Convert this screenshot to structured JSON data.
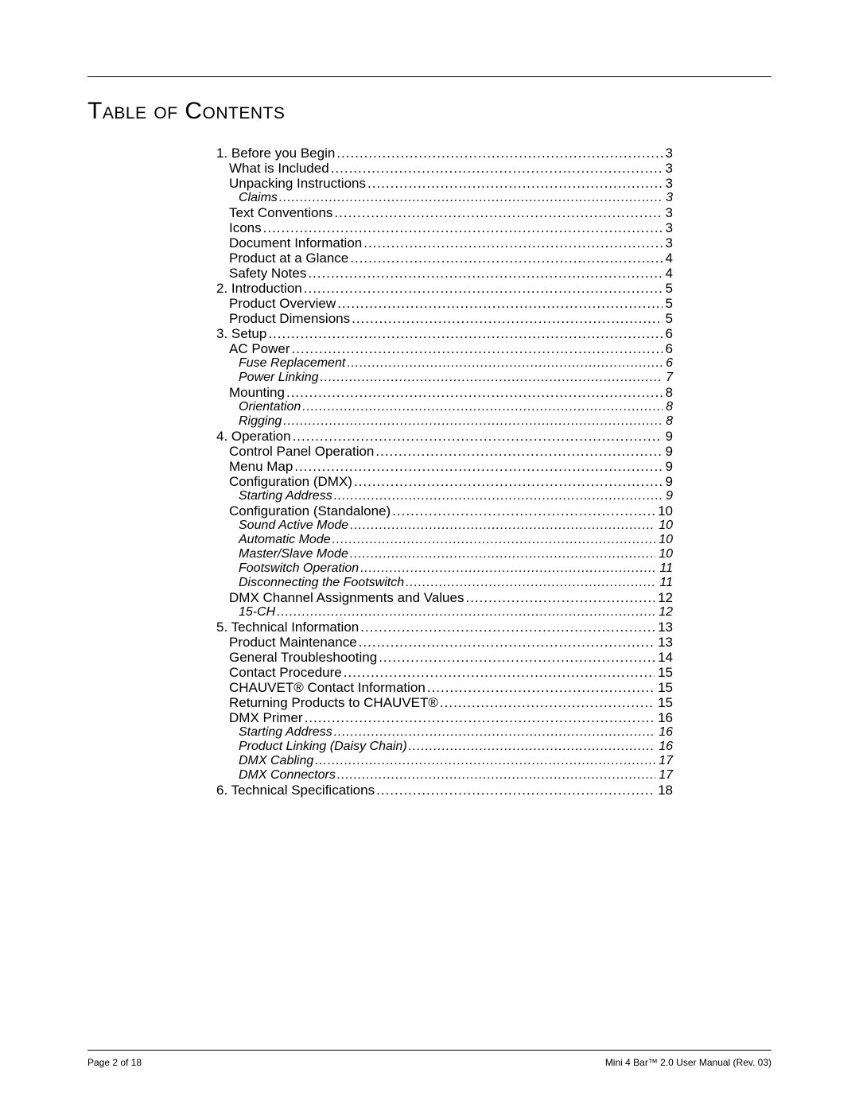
{
  "title": "Table of Contents",
  "footer_left": "Page 2 of 18",
  "footer_right": "Mini 4 Bar™ 2.0 User Manual (Rev. 03)",
  "colors": {
    "text": "#000000",
    "background": "#ffffff",
    "rule": "#000000"
  },
  "typography": {
    "body_size_pt": 12,
    "title_size_pt": 22,
    "footer_size_pt": 9,
    "font_family": "Arial"
  },
  "toc": [
    {
      "level": 1,
      "label": "1. Before you Begin",
      "page": "3"
    },
    {
      "level": 2,
      "label": "What is Included",
      "page": "3"
    },
    {
      "level": 2,
      "label": "Unpacking Instructions",
      "page": "3"
    },
    {
      "level": 3,
      "label": "Claims",
      "page": "3"
    },
    {
      "level": 2,
      "label": "Text Conventions",
      "page": "3"
    },
    {
      "level": 2,
      "label": "Icons",
      "page": "3"
    },
    {
      "level": 2,
      "label": "Document Information",
      "page": "3"
    },
    {
      "level": 2,
      "label": "Product at a Glance",
      "page": "4"
    },
    {
      "level": 2,
      "label": "Safety Notes",
      "page": "4"
    },
    {
      "level": 1,
      "label": "2. Introduction",
      "page": "5"
    },
    {
      "level": 2,
      "label": "Product Overview",
      "page": "5"
    },
    {
      "level": 2,
      "label": "Product Dimensions",
      "page": "5"
    },
    {
      "level": 1,
      "label": "3. Setup",
      "page": "6"
    },
    {
      "level": 2,
      "label": "AC Power",
      "page": "6"
    },
    {
      "level": 3,
      "label": "Fuse Replacement",
      "page": "6"
    },
    {
      "level": 3,
      "label": "Power Linking",
      "page": "7"
    },
    {
      "level": 2,
      "label": "Mounting",
      "page": "8"
    },
    {
      "level": 3,
      "label": "Orientation",
      "page": "8"
    },
    {
      "level": 3,
      "label": "Rigging",
      "page": "8"
    },
    {
      "level": 1,
      "label": "4. Operation",
      "page": "9"
    },
    {
      "level": 2,
      "label": "Control Panel Operation",
      "page": "9"
    },
    {
      "level": 2,
      "label": "Menu Map",
      "page": "9"
    },
    {
      "level": 2,
      "label": "Configuration (DMX)",
      "page": "9"
    },
    {
      "level": 3,
      "label": "Starting Address",
      "page": "9"
    },
    {
      "level": 2,
      "label": "Configuration (Standalone)",
      "page": "10"
    },
    {
      "level": 3,
      "label": "Sound Active Mode",
      "page": "10"
    },
    {
      "level": 3,
      "label": "Automatic Mode",
      "page": "10"
    },
    {
      "level": 3,
      "label": "Master/Slave Mode",
      "page": "10"
    },
    {
      "level": 3,
      "label": "Footswitch Operation",
      "page": "11"
    },
    {
      "level": 3,
      "label": "Disconnecting the Footswitch",
      "page": "11"
    },
    {
      "level": 2,
      "label": "DMX Channel Assignments and Values",
      "page": "12"
    },
    {
      "level": 3,
      "label": "15-CH",
      "page": "12"
    },
    {
      "level": 1,
      "label": "5. Technical Information",
      "page": "13"
    },
    {
      "level": 2,
      "label": "Product Maintenance",
      "page": "13"
    },
    {
      "level": 2,
      "label": "General Troubleshooting",
      "page": "14"
    },
    {
      "level": 2,
      "label": "Contact Procedure",
      "page": "15"
    },
    {
      "level": 2,
      "label": "CHAUVET® Contact Information",
      "page": "15"
    },
    {
      "level": 2,
      "label": "Returning Products to CHAUVET®",
      "page": "15"
    },
    {
      "level": 2,
      "label": "DMX Primer",
      "page": "16"
    },
    {
      "level": 3,
      "label": "Starting Address",
      "page": "16"
    },
    {
      "level": 3,
      "label": "Product Linking (Daisy Chain)",
      "page": "16"
    },
    {
      "level": 3,
      "label": "DMX Cabling",
      "page": "17"
    },
    {
      "level": 3,
      "label": "DMX Connectors",
      "page": "17"
    },
    {
      "level": 1,
      "label": "6. Technical Specifications",
      "page": "18"
    }
  ]
}
